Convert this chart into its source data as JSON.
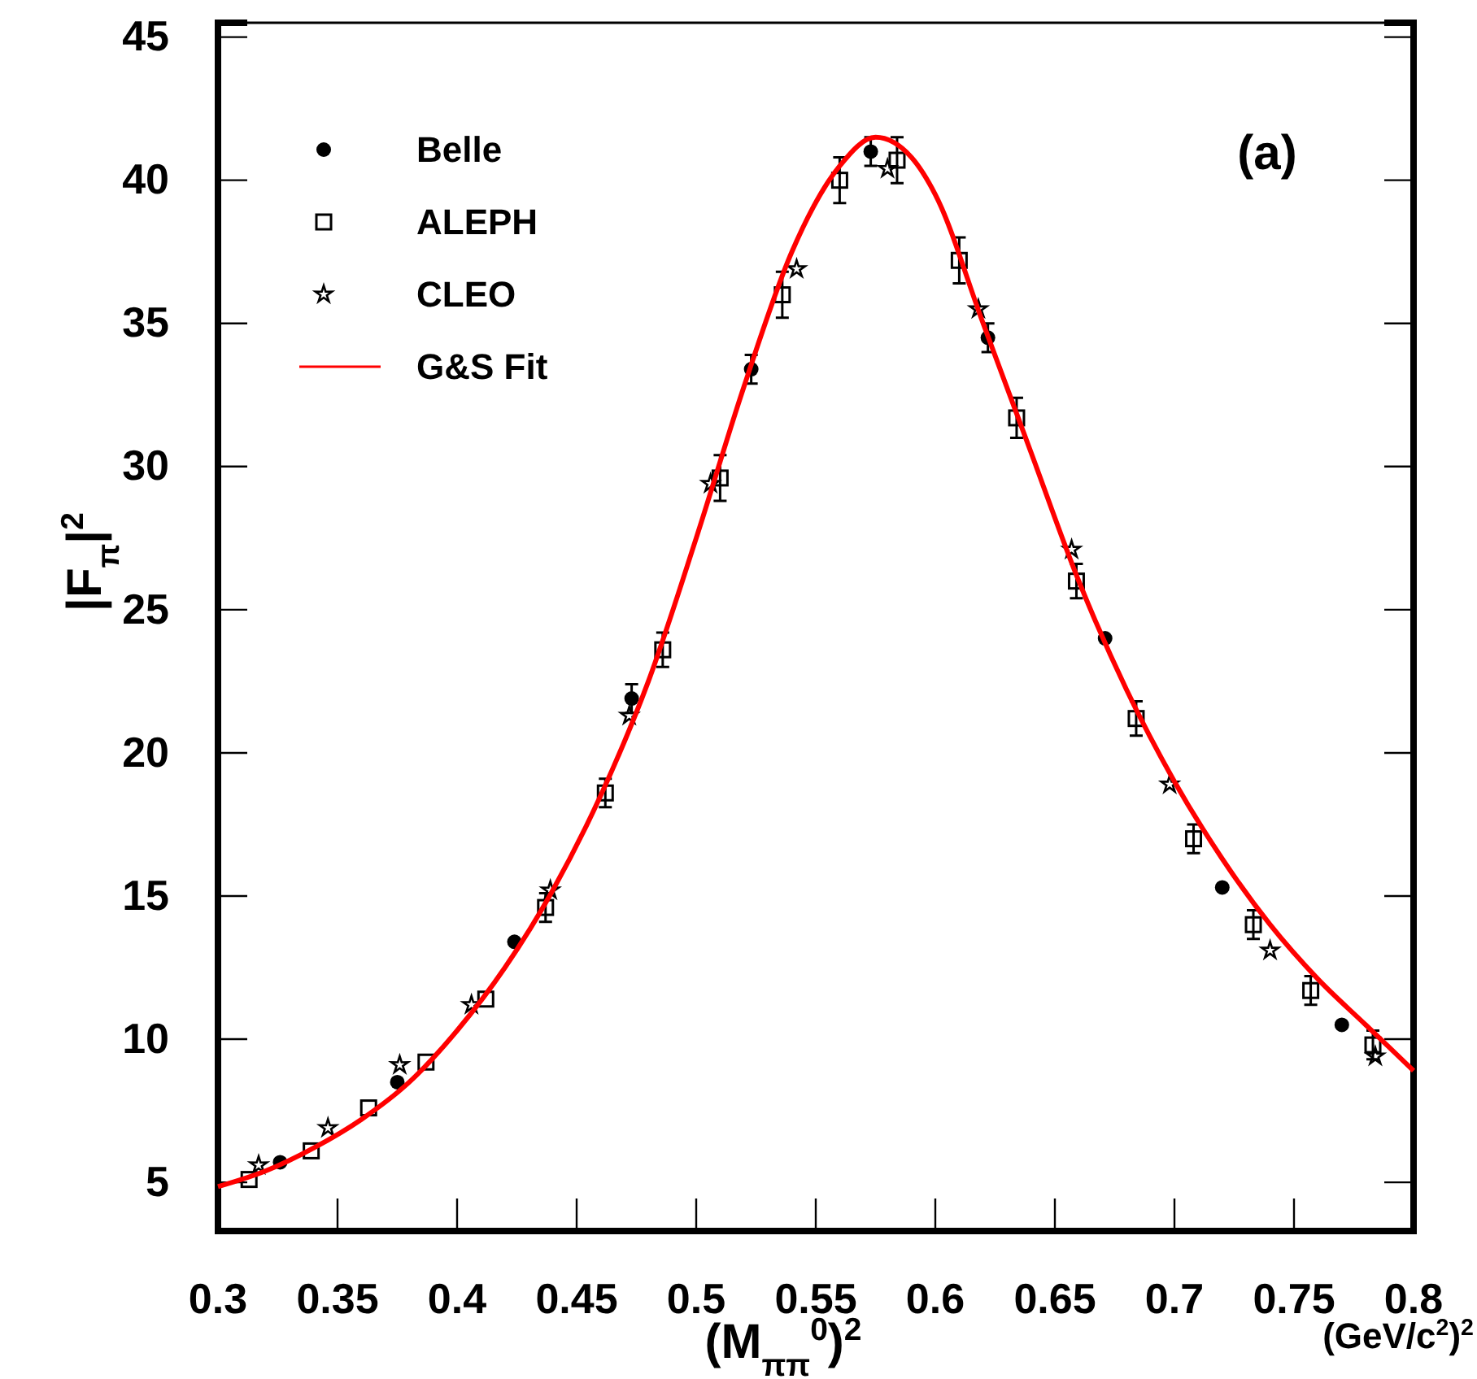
{
  "chart_data": {
    "type": "scatter",
    "xlabel": "(M$_{ππ}$$^{0}$)$^{2}$",
    "ylabel": "|F$_{π}$|$^{2}$",
    "annotations": [
      "(a)",
      "(GeV/c$^{2}$)$^{2}$"
    ],
    "xlim": [
      0.3,
      0.8
    ],
    "ylim": [
      3.3,
      45.5
    ],
    "xticks": [
      0.3,
      0.35,
      0.4,
      0.45,
      0.5,
      0.55,
      0.6,
      0.65,
      0.7,
      0.75,
      0.8
    ],
    "yticks": [
      5,
      10,
      15,
      20,
      25,
      30,
      35,
      40,
      45
    ],
    "grid": false,
    "legend": "top left",
    "series": [
      {
        "name": "Belle",
        "type": "scatter",
        "marker": "circle",
        "color": "#000000",
        "x": [
          0.326,
          0.375,
          0.424,
          0.473,
          0.523,
          0.573,
          0.622,
          0.671,
          0.72,
          0.77
        ],
        "values": [
          5.7,
          8.5,
          13.4,
          21.9,
          33.4,
          41.0,
          34.5,
          24.0,
          15.3,
          10.5
        ],
        "errors": [
          null,
          null,
          null,
          0.5,
          0.5,
          0.5,
          0.5,
          null,
          null,
          null
        ]
      },
      {
        "name": "ALEPH",
        "type": "scatter",
        "marker": "square",
        "color": "#000000",
        "x": [
          0.313,
          0.339,
          0.363,
          0.387,
          0.412,
          0.437,
          0.462,
          0.486,
          0.51,
          0.536,
          0.56,
          0.584,
          0.61,
          0.634,
          0.659,
          0.684,
          0.708,
          0.733,
          0.757,
          0.783
        ],
        "values": [
          5.1,
          6.1,
          7.6,
          9.2,
          11.4,
          14.6,
          18.6,
          23.6,
          29.6,
          36.0,
          40.0,
          40.7,
          37.2,
          31.7,
          26.0,
          21.2,
          17.0,
          14.0,
          11.7,
          9.8
        ],
        "errors": [
          null,
          null,
          null,
          null,
          null,
          0.5,
          0.5,
          0.6,
          0.8,
          0.8,
          0.8,
          0.8,
          0.8,
          0.7,
          0.6,
          0.6,
          0.5,
          0.5,
          0.5,
          0.5
        ]
      },
      {
        "name": "CLEO",
        "type": "scatter",
        "marker": "star",
        "color": "#000000",
        "x": [
          0.317,
          0.346,
          0.376,
          0.406,
          0.439,
          0.472,
          0.506,
          0.542,
          0.58,
          0.618,
          0.657,
          0.698,
          0.74,
          0.784
        ],
        "values": [
          5.6,
          6.9,
          9.1,
          11.2,
          15.2,
          21.3,
          29.4,
          36.9,
          40.4,
          35.5,
          27.1,
          18.9,
          13.1,
          9.4
        ]
      },
      {
        "name": "G&S Fit",
        "type": "line",
        "marker": "none",
        "line_style": "solid",
        "color": "#ff0000",
        "x": [
          0.3,
          0.32,
          0.34,
          0.36,
          0.38,
          0.4,
          0.42,
          0.44,
          0.46,
          0.48,
          0.5,
          0.52,
          0.54,
          0.56,
          0.575,
          0.59,
          0.6,
          0.62,
          0.64,
          0.66,
          0.68,
          0.7,
          0.72,
          0.74,
          0.76,
          0.78,
          0.8
        ],
        "values": [
          4.85,
          5.4,
          6.2,
          7.2,
          8.5,
          10.3,
          12.5,
          15.2,
          18.5,
          22.5,
          27.5,
          32.8,
          37.5,
          40.5,
          41.5,
          40.8,
          39.5,
          35.0,
          30.5,
          26.0,
          22.2,
          19.0,
          16.3,
          14.0,
          12.1,
          10.5,
          8.9
        ]
      }
    ]
  }
}
